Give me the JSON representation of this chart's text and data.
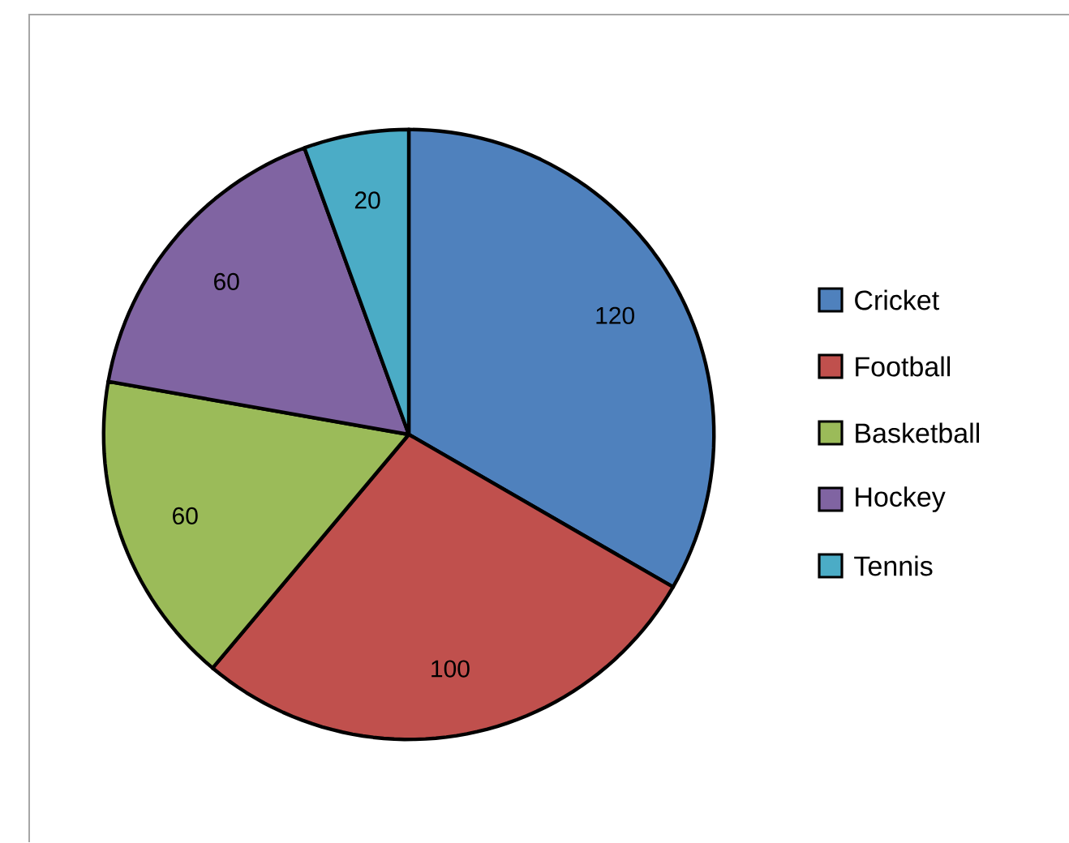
{
  "chart_data": {
    "type": "pie",
    "categories": [
      "Cricket",
      "Football",
      "Basketball",
      "Hockey",
      "Tennis"
    ],
    "values": [
      120,
      100,
      60,
      60,
      20
    ],
    "colors": [
      "#4f81bd",
      "#c0504d",
      "#9bbb59",
      "#8064a2",
      "#4bacc6"
    ],
    "data_labels": true,
    "legend": "right"
  }
}
